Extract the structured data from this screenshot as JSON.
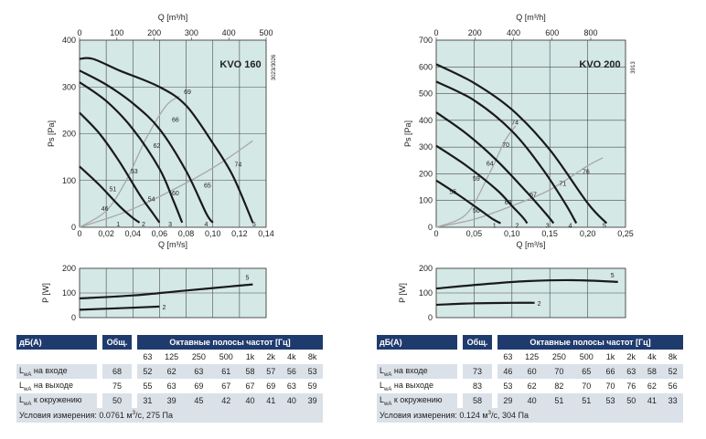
{
  "chart_data": [
    {
      "type": "line",
      "title": "KVO 160",
      "side_code": "3023/3026",
      "xlabel": "Q [m³/s]",
      "ylabel": "Ps [Pa]",
      "x2label": "Q [m³/h]",
      "xlim": [
        0,
        0.14
      ],
      "ylim": [
        0,
        400
      ],
      "xticks": [
        "0",
        "0,02",
        "0,04",
        "0,06",
        "0,08",
        "0,10",
        "0,12",
        "0,14"
      ],
      "yticks": [
        "0",
        "100",
        "200",
        "300",
        "400"
      ],
      "x2ticks": [
        "0",
        "100",
        "200",
        "300",
        "400",
        "500"
      ],
      "grid": true,
      "series": [
        {
          "name": "5",
          "x": [
            0,
            0.01,
            0.03,
            0.06,
            0.08,
            0.1,
            0.115,
            0.13
          ],
          "y": [
            360,
            360,
            335,
            300,
            260,
            180,
            110,
            10
          ]
        },
        {
          "name": "4",
          "x": [
            0,
            0.02,
            0.04,
            0.06,
            0.08,
            0.095,
            0.1
          ],
          "y": [
            335,
            305,
            265,
            210,
            120,
            30,
            10
          ]
        },
        {
          "name": "3",
          "x": [
            0,
            0.02,
            0.04,
            0.06,
            0.07,
            0.077
          ],
          "y": [
            310,
            270,
            210,
            125,
            60,
            10
          ]
        },
        {
          "name": "2",
          "x": [
            0,
            0.015,
            0.03,
            0.045,
            0.055,
            0.06
          ],
          "y": [
            245,
            200,
            140,
            70,
            30,
            10
          ]
        },
        {
          "name": "1",
          "x": [
            0,
            0.015,
            0.03,
            0.04,
            0.045
          ],
          "y": [
            130,
            90,
            45,
            20,
            10
          ]
        }
      ],
      "system_curves": [
        {
          "x": [
            0,
            0.03,
            0.05,
            0.07,
            0.09,
            0.11,
            0.13
          ],
          "y": [
            0,
            28,
            52,
            80,
            110,
            145,
            185
          ]
        },
        {
          "x": [
            0,
            0.02,
            0.035,
            0.05,
            0.065,
            0.075
          ],
          "y": [
            0,
            35,
            100,
            190,
            260,
            280
          ]
        }
      ],
      "efficiency_labels": [
        {
          "text": "69",
          "x": 0.081,
          "y": 285
        },
        {
          "text": "66",
          "x": 0.072,
          "y": 225
        },
        {
          "text": "62",
          "x": 0.058,
          "y": 170
        },
        {
          "text": "53",
          "x": 0.041,
          "y": 115
        },
        {
          "text": "51",
          "x": 0.025,
          "y": 77
        },
        {
          "text": "46",
          "x": 0.019,
          "y": 35
        },
        {
          "text": "54",
          "x": 0.054,
          "y": 56
        },
        {
          "text": "60",
          "x": 0.072,
          "y": 68
        },
        {
          "text": "65",
          "x": 0.096,
          "y": 85
        },
        {
          "text": "74",
          "x": 0.119,
          "y": 130
        }
      ],
      "curve_labels": [
        {
          "text": "1",
          "x": 0.029,
          "y": 18
        },
        {
          "text": "2",
          "x": 0.048,
          "y": 18
        },
        {
          "text": "3",
          "x": 0.068,
          "y": 18
        },
        {
          "text": "4",
          "x": 0.095,
          "y": 18
        },
        {
          "text": "5",
          "x": 0.131,
          "y": 18
        }
      ],
      "power": {
        "ylabel": "P [W]",
        "ylim": [
          0,
          200
        ],
        "yticks": [
          "0",
          "100",
          "200"
        ],
        "series": [
          {
            "name": "5",
            "x": [
              0,
              0.04,
              0.08,
              0.13
            ],
            "y": [
              78,
              90,
              110,
              135
            ]
          },
          {
            "name": "2",
            "x": [
              0,
              0.03,
              0.06
            ],
            "y": [
              32,
              38,
              45
            ]
          }
        ]
      },
      "table": {
        "db_label": "дБ(А)",
        "total_label": "Общ.",
        "bands_label": "Октавные полосы частот [Гц]",
        "bands": [
          "63",
          "125",
          "250",
          "500",
          "1k",
          "2k",
          "4k",
          "8k"
        ],
        "rows": [
          {
            "l": "L",
            "sub": "wA",
            "label": " на входе",
            "total": "68",
            "values": [
              "52",
              "62",
              "63",
              "61",
              "58",
              "57",
              "56",
              "53"
            ]
          },
          {
            "l": "L",
            "sub": "wA",
            "label": " на выходе",
            "total": "75",
            "values": [
              "55",
              "63",
              "69",
              "67",
              "67",
              "69",
              "63",
              "59"
            ]
          },
          {
            "l": "L",
            "sub": "wA",
            "label": " к окружению",
            "total": "50",
            "values": [
              "31",
              "39",
              "45",
              "42",
              "40",
              "41",
              "40",
              "39"
            ]
          }
        ],
        "footnote_prefix": "Условия измерения: 0.0761 м",
        "footnote_sup": "3",
        "footnote_suffix": "/с, 275 Па"
      }
    },
    {
      "type": "line",
      "title": "KVO 200",
      "side_code": "3913",
      "xlabel": "Q [m³/s]",
      "ylabel": "Ps [Pa]",
      "x2label": "Q [m³/h]",
      "xlim": [
        0,
        0.25
      ],
      "ylim": [
        0,
        700
      ],
      "xticks": [
        "0",
        "0,05",
        "0,10",
        "0,15",
        "0,20",
        "0,25"
      ],
      "yticks": [
        "0",
        "100",
        "200",
        "300",
        "400",
        "500",
        "600",
        "700"
      ],
      "x2ticks": [
        "0",
        "200",
        "400",
        "600",
        "800"
      ],
      "grid": true,
      "series": [
        {
          "name": "5",
          "x": [
            0,
            0.05,
            0.1,
            0.15,
            0.2,
            0.225
          ],
          "y": [
            610,
            540,
            440,
            290,
            90,
            15
          ]
        },
        {
          "name": "4",
          "x": [
            0,
            0.05,
            0.1,
            0.14,
            0.17,
            0.185
          ],
          "y": [
            545,
            475,
            360,
            220,
            90,
            15
          ]
        },
        {
          "name": "3",
          "x": [
            0,
            0.04,
            0.08,
            0.12,
            0.145,
            0.155
          ],
          "y": [
            430,
            350,
            250,
            130,
            50,
            15
          ]
        },
        {
          "name": "2",
          "x": [
            0,
            0.04,
            0.08,
            0.1,
            0.115,
            0.12
          ],
          "y": [
            305,
            230,
            140,
            80,
            35,
            15
          ]
        },
        {
          "name": "1",
          "x": [
            0,
            0.03,
            0.06,
            0.075,
            0.085
          ],
          "y": [
            175,
            120,
            60,
            30,
            15
          ]
        }
      ],
      "system_curves": [
        {
          "x": [
            0,
            0.05,
            0.1,
            0.15,
            0.2,
            0.22
          ],
          "y": [
            0,
            30,
            80,
            140,
            230,
            260
          ]
        },
        {
          "x": [
            0,
            0.04,
            0.07,
            0.09,
            0.105
          ],
          "y": [
            0,
            50,
            200,
            320,
            380
          ]
        }
      ],
      "efficiency_labels": [
        {
          "text": "74",
          "x": 0.104,
          "y": 385
        },
        {
          "text": "70",
          "x": 0.092,
          "y": 300
        },
        {
          "text": "64",
          "x": 0.071,
          "y": 230
        },
        {
          "text": "59",
          "x": 0.053,
          "y": 175
        },
        {
          "text": "55",
          "x": 0.022,
          "y": 125
        },
        {
          "text": "50",
          "x": 0.053,
          "y": 55
        },
        {
          "text": "63",
          "x": 0.095,
          "y": 85
        },
        {
          "text": "67",
          "x": 0.128,
          "y": 115
        },
        {
          "text": "71",
          "x": 0.167,
          "y": 155
        },
        {
          "text": "76",
          "x": 0.198,
          "y": 200
        }
      ],
      "curve_labels": [
        {
          "text": "1",
          "x": 0.077,
          "y": 25
        },
        {
          "text": "2",
          "x": 0.107,
          "y": 25
        },
        {
          "text": "3",
          "x": 0.147,
          "y": 25
        },
        {
          "text": "4",
          "x": 0.177,
          "y": 25
        },
        {
          "text": "5",
          "x": 0.222,
          "y": 25
        }
      ],
      "power": {
        "ylabel": "P [W]",
        "ylim": [
          0,
          200
        ],
        "yticks": [
          "0",
          "100",
          "200"
        ],
        "series": [
          {
            "name": "5",
            "x": [
              0,
              0.06,
              0.12,
              0.18,
              0.24
            ],
            "y": [
              118,
              135,
              148,
              152,
              145
            ]
          },
          {
            "name": "2",
            "x": [
              0,
              0.05,
              0.1,
              0.13
            ],
            "y": [
              52,
              58,
              60,
              60
            ]
          }
        ]
      },
      "table": {
        "db_label": "дБ(А)",
        "total_label": "Общ.",
        "bands_label": "Октавные полосы частот [Гц]",
        "bands": [
          "63",
          "125",
          "250",
          "500",
          "1k",
          "2k",
          "4k",
          "8k"
        ],
        "rows": [
          {
            "l": "L",
            "sub": "wA",
            "label": " на входе",
            "total": "73",
            "values": [
              "46",
              "60",
              "70",
              "65",
              "66",
              "63",
              "58",
              "52"
            ]
          },
          {
            "l": "L",
            "sub": "wA",
            "label": " на выходе",
            "total": "83",
            "values": [
              "53",
              "62",
              "82",
              "70",
              "70",
              "76",
              "62",
              "56"
            ]
          },
          {
            "l": "L",
            "sub": "wA",
            "label": " к окружению",
            "total": "58",
            "values": [
              "29",
              "40",
              "51",
              "51",
              "53",
              "50",
              "41",
              "33"
            ]
          }
        ],
        "footnote_prefix": "Условия измерения: 0.124 м",
        "footnote_sup": "3",
        "footnote_suffix": "/с, 304 Па"
      }
    }
  ]
}
